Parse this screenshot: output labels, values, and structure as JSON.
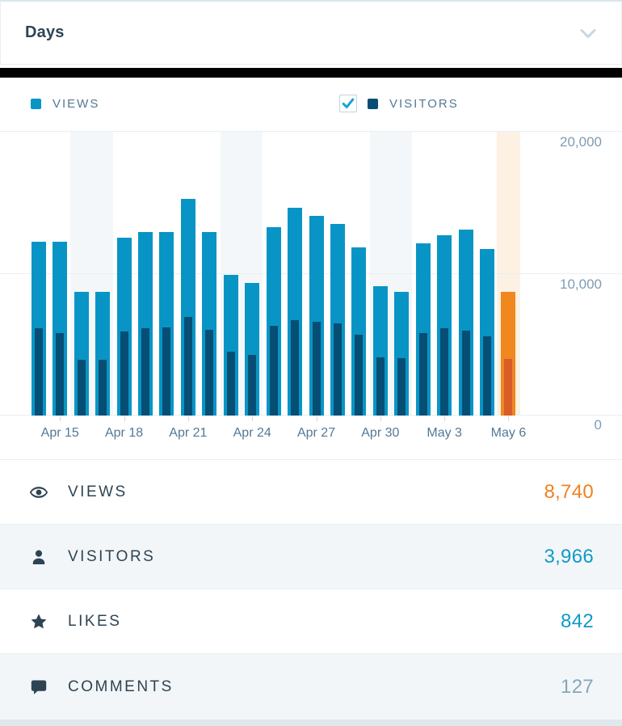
{
  "header": {
    "title": "Days"
  },
  "legend": {
    "views_label": "VIEWS",
    "visitors_label": "VISITORS",
    "visitors_checkbox_checked": true,
    "check_color": "#18a3d8"
  },
  "chart_data": {
    "type": "bar",
    "title": "Views and visitors per day",
    "x": [
      "Apr 14",
      "Apr 15",
      "Apr 16",
      "Apr 17",
      "Apr 18",
      "Apr 19",
      "Apr 20",
      "Apr 21",
      "Apr 22",
      "Apr 23",
      "Apr 24",
      "Apr 25",
      "Apr 26",
      "Apr 27",
      "Apr 28",
      "Apr 29",
      "Apr 30",
      "May 1",
      "May 2",
      "May 3",
      "May 4",
      "May 5",
      "May 6"
    ],
    "series": [
      {
        "name": "Views",
        "values": [
          12260,
          12260,
          8715,
          8715,
          12510,
          12920,
          12920,
          15280,
          12920,
          9900,
          9360,
          13300,
          14660,
          14050,
          13490,
          11880,
          9090,
          8730,
          12130,
          12680,
          13110,
          11730,
          8740
        ]
      },
      {
        "name": "Visitors",
        "values": [
          6130,
          5810,
          3960,
          3960,
          5900,
          6130,
          6190,
          6940,
          6040,
          4490,
          4280,
          6320,
          6750,
          6600,
          6510,
          5700,
          4090,
          4060,
          5790,
          6130,
          6000,
          5600,
          3966
        ]
      }
    ],
    "ylim": [
      0,
      20000
    ],
    "y_axis": {
      "ticks": [
        "20,000",
        "10,000",
        "0"
      ]
    },
    "x_tick_indices": [
      1,
      4,
      7,
      10,
      13,
      16,
      19,
      22
    ],
    "x_tick_labels": [
      "Apr 15",
      "Apr 18",
      "Apr 21",
      "Apr 24",
      "Apr 27",
      "Apr 30",
      "May 3",
      "May 6"
    ],
    "weekend_bands": [
      [
        2,
        3
      ],
      [
        9,
        10
      ],
      [
        16,
        17
      ]
    ],
    "highlighted_index": 22,
    "legend_position": "top",
    "grid": "horizontal",
    "colors": {
      "views": "#0895c5",
      "visitors": "#074e74",
      "views_highlight": "#f0871f",
      "visitors_highlight": "#d85d27",
      "weekend_band": "#f4f7f9",
      "highlight_band": "#fcf1e3"
    }
  },
  "summary": [
    {
      "label": "VIEWS",
      "value": "8,740",
      "value_color": "#f0821e",
      "icon": "eye-icon"
    },
    {
      "label": "VISITORS",
      "value": "3,966",
      "value_color": "#0f9ac8",
      "icon": "person-icon"
    },
    {
      "label": "LIKES",
      "value": "842",
      "value_color": "#0f9ac8",
      "icon": "star-icon"
    },
    {
      "label": "COMMENTS",
      "value": "127",
      "value_color": "#87a6bc",
      "icon": "comment-icon"
    }
  ]
}
